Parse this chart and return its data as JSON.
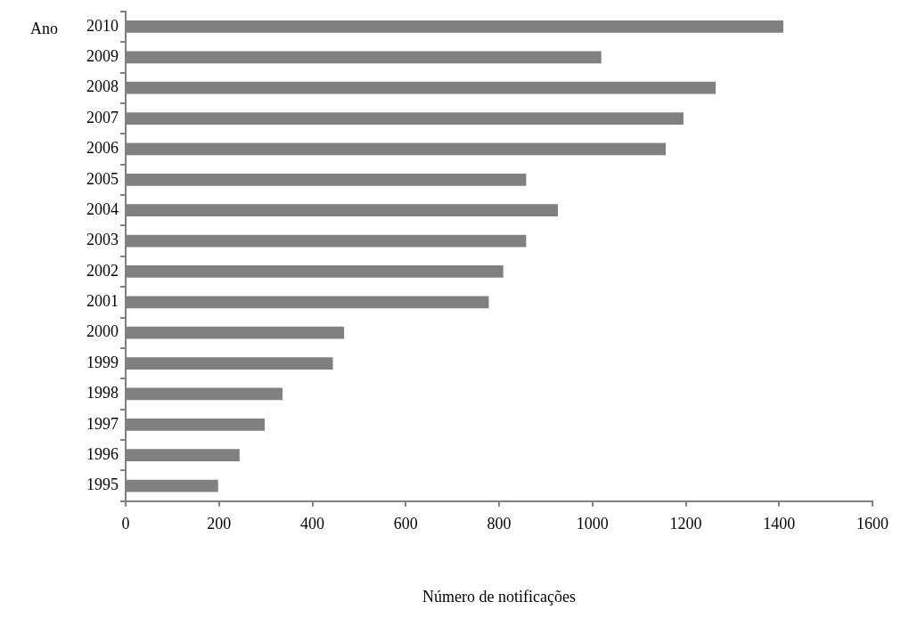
{
  "chart_data": {
    "type": "bar",
    "orientation": "horizontal",
    "xlabel": "Número de notificações",
    "ylabel": "Ano",
    "categories": [
      "2010",
      "2009",
      "2008",
      "2007",
      "2006",
      "2005",
      "2004",
      "2003",
      "2002",
      "2001",
      "2000",
      "1999",
      "1998",
      "1997",
      "1996",
      "1995"
    ],
    "values": [
      1409,
      1019,
      1264,
      1195,
      1157,
      858,
      926,
      858,
      809,
      778,
      468,
      444,
      336,
      298,
      244,
      198
    ],
    "color": "#808080",
    "xlim": [
      0,
      1600
    ],
    "xticks": [
      0,
      200,
      400,
      600,
      800,
      1000,
      1200,
      1400,
      1600
    ],
    "grid": false,
    "legend": false
  }
}
